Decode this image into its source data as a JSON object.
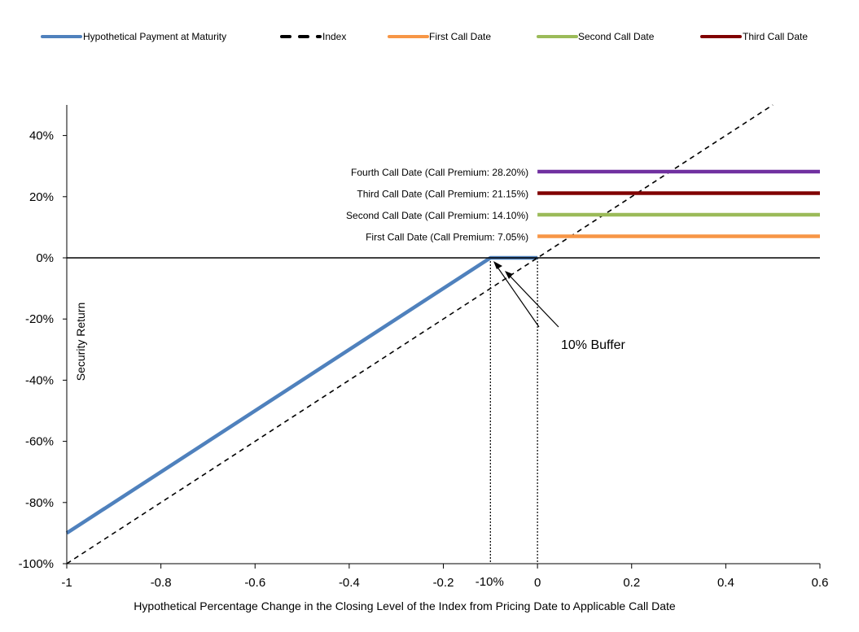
{
  "chart_data": {
    "type": "line",
    "xlabel": "Hypothetical Percentage Change in the Closing Level of the Index from Pricing Date to Applicable Call Date",
    "ylabel": "Security Return",
    "xlim": [
      -1,
      0.6
    ],
    "ylim": [
      -1,
      0.5
    ],
    "x_ticks": [
      -1,
      -0.8,
      -0.6,
      -0.4,
      -0.2,
      0,
      0.2,
      0.4,
      0.6
    ],
    "x_tick_labels": [
      "-1",
      "-0.8",
      "-0.6",
      "-0.4",
      "-0.2",
      "0",
      "0.2",
      "0.4",
      "0.6"
    ],
    "y_ticks": [
      -1,
      -0.8,
      -0.6,
      -0.4,
      -0.2,
      0,
      0.2,
      0.4
    ],
    "y_tick_labels": [
      "-100%",
      "-80%",
      "-60%",
      "-40%",
      "-20%",
      "0%",
      "20%",
      "40%"
    ],
    "extra_x_label": {
      "x": -0.1,
      "text": "-10%"
    },
    "legend_position": "top",
    "legend": [
      {
        "label": "Hypothetical Payment at Maturity",
        "color": "#4F81BD",
        "style": "solid"
      },
      {
        "label": "Index",
        "color": "#000000",
        "style": "dashed"
      },
      {
        "label": "First Call Date",
        "color": "#F79646",
        "style": "solid"
      },
      {
        "label": "Second Call Date",
        "color": "#9BBB59",
        "style": "solid"
      },
      {
        "label": "Third Call Date",
        "color": "#800000",
        "style": "solid"
      }
    ],
    "series": [
      {
        "name": "Hypothetical Payment at Maturity",
        "color": "#4F81BD",
        "points": [
          [
            -1,
            -0.9
          ],
          [
            -0.1,
            0
          ],
          [
            0,
            0
          ]
        ]
      },
      {
        "name": "Index",
        "color": "#000000",
        "dashed": true,
        "points": [
          [
            -1,
            -1
          ],
          [
            0.5,
            0.5
          ]
        ]
      },
      {
        "name": "First Call Date",
        "color": "#F79646",
        "x_range": [
          0,
          0.6
        ],
        "value": 0.0705
      },
      {
        "name": "Second Call Date",
        "color": "#9BBB59",
        "x_range": [
          0,
          0.6
        ],
        "value": 0.141
      },
      {
        "name": "Third Call Date",
        "color": "#800000",
        "x_range": [
          0,
          0.6
        ],
        "value": 0.2115
      },
      {
        "name": "Fourth Call Date",
        "color": "#7030A0",
        "x_range": [
          0,
          0.6
        ],
        "value": 0.282
      }
    ],
    "annotations": [
      {
        "text": "Fourth Call Date (Call Premium: 28.20%)",
        "y": 0.282
      },
      {
        "text": "Third Call Date (Call Premium: 21.15%)",
        "y": 0.2115
      },
      {
        "text": "Second Call Date (Call Premium: 14.10%)",
        "y": 0.141
      },
      {
        "text": "First Call Date (Call Premium: 7.05%)",
        "y": 0.0705
      }
    ],
    "buffer_label": "10% Buffer",
    "reference_lines": [
      -0.1,
      0
    ]
  }
}
